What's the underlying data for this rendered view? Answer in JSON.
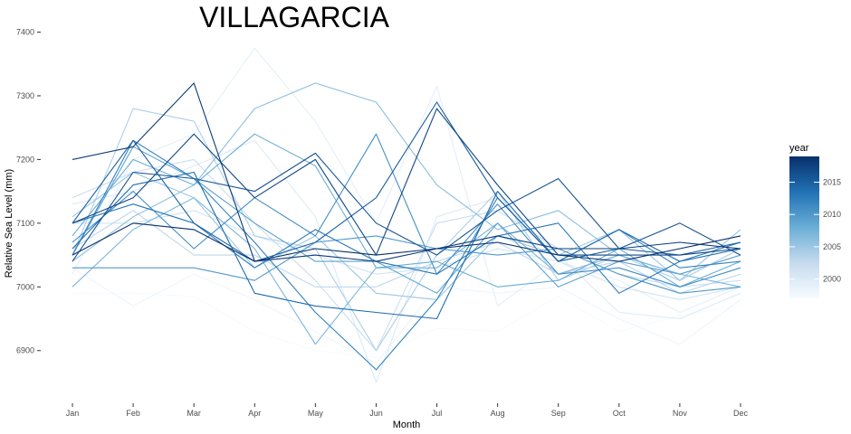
{
  "chart_data": {
    "type": "line",
    "title": "VILLAGARCIA",
    "xlabel": "Month",
    "ylabel": "Relative Sea Level (mm)",
    "categories": [
      "Jan",
      "Feb",
      "Mar",
      "Apr",
      "May",
      "Jun",
      "Jul",
      "Aug",
      "Sep",
      "Oct",
      "Nov",
      "Dec"
    ],
    "yticks": [
      6900,
      7000,
      7100,
      7200,
      7300,
      7400
    ],
    "ylim": [
      6840,
      7405
    ],
    "grid": false,
    "legend": {
      "title": "year",
      "position": "right",
      "type": "colorbar",
      "range": [
        1997,
        2019
      ],
      "ticks": [
        2000,
        2005,
        2010,
        2015
      ],
      "colors": [
        "#f7fbff",
        "#c6dbef",
        "#6baed6",
        "#2171b5",
        "#08306b"
      ]
    },
    "series": [
      {
        "year": 1997,
        "values": [
          6990,
          6990,
          6985,
          6930,
          6900,
          6890,
          6935,
          6930,
          6985,
          6930,
          6955,
          6970
        ]
      },
      {
        "year": 1998,
        "values": [
          7030,
          6970,
          7020,
          6980,
          6930,
          6880,
          7000,
          6990,
          7000,
          6950,
          6910,
          6980
        ]
      },
      {
        "year": 1999,
        "values": [
          7020,
          7200,
          7240,
          7375,
          7260,
          7100,
          7315,
          6970,
          7040,
          7010,
          6960,
          7000
        ]
      },
      {
        "year": 2000,
        "values": [
          7130,
          7150,
          7190,
          7230,
          7110,
          6850,
          7110,
          7140,
          7050,
          6960,
          6950,
          6990
        ]
      },
      {
        "year": 2001,
        "values": [
          7100,
          7100,
          7120,
          7080,
          7050,
          7020,
          7030,
          7060,
          7040,
          7000,
          6980,
          7000
        ]
      },
      {
        "year": 2002,
        "values": [
          7140,
          7180,
          7200,
          7100,
          7010,
          6900,
          7100,
          7120,
          7060,
          7020,
          7000,
          7010
        ]
      },
      {
        "year": 2003,
        "values": [
          7060,
          7120,
          7050,
          7050,
          7000,
          7000,
          7040,
          7070,
          7020,
          7040,
          6990,
          7020
        ]
      },
      {
        "year": 2004,
        "values": [
          7050,
          7280,
          7260,
          7080,
          7060,
          6900,
          7050,
          7150,
          7010,
          7050,
          7010,
          7060
        ]
      },
      {
        "year": 2005,
        "values": [
          7110,
          7180,
          7140,
          7030,
          7080,
          6990,
          6980,
          7080,
          7050,
          7090,
          7010,
          7090
        ]
      },
      {
        "year": 2006,
        "values": [
          7040,
          7110,
          7160,
          7280,
          7320,
          7290,
          7160,
          7090,
          7120,
          7050,
          7020,
          7050
        ]
      },
      {
        "year": 2007,
        "values": [
          7000,
          7090,
          7140,
          7060,
          6910,
          7030,
          7030,
          7100,
          7020,
          7050,
          7020,
          7000
        ]
      },
      {
        "year": 2008,
        "values": [
          7080,
          7200,
          7160,
          7240,
          7190,
          7030,
          7040,
          7000,
          7010,
          7060,
          7000,
          7040
        ]
      },
      {
        "year": 2009,
        "values": [
          7050,
          7220,
          7170,
          7100,
          7040,
          7040,
          6990,
          7100,
          7000,
          7040,
          7020,
          7050
        ]
      },
      {
        "year": 2010,
        "values": [
          7030,
          7030,
          7030,
          7010,
          7070,
          7080,
          7060,
          7050,
          7060,
          7020,
          6990,
          7000
        ]
      },
      {
        "year": 2011,
        "values": [
          7070,
          7150,
          7060,
          7140,
          7080,
          7240,
          7020,
          7130,
          7020,
          7030,
          7000,
          7030
        ]
      },
      {
        "year": 2012,
        "values": [
          7050,
          7230,
          7170,
          7070,
          6960,
          6870,
          6980,
          7140,
          7040,
          7090,
          7030,
          7040
        ]
      },
      {
        "year": 2013,
        "values": [
          7100,
          7130,
          7100,
          7030,
          7090,
          7040,
          7020,
          7080,
          7100,
          6990,
          7040,
          7070
        ]
      },
      {
        "year": 2014,
        "values": [
          7060,
          7160,
          7180,
          6990,
          6970,
          6960,
          6950,
          7150,
          7040,
          7090,
          7040,
          7060
        ]
      },
      {
        "year": 2015,
        "values": [
          7100,
          7230,
          7100,
          7040,
          7070,
          7140,
          7290,
          7140,
          7040,
          7060,
          7050,
          7070
        ]
      },
      {
        "year": 2016,
        "values": [
          7040,
          7180,
          7170,
          7150,
          7210,
          7100,
          7050,
          7120,
          7170,
          7060,
          7100,
          7050
        ]
      },
      {
        "year": 2017,
        "values": [
          7100,
          7140,
          7240,
          7140,
          7200,
          7050,
          7280,
          7160,
          7050,
          7050,
          7050,
          7060
        ]
      },
      {
        "year": 2018,
        "values": [
          7200,
          7220,
          7320,
          7040,
          7050,
          7040,
          7060,
          7080,
          7060,
          7060,
          7070,
          7060
        ]
      },
      {
        "year": 2019,
        "values": [
          7050,
          7100,
          7090,
          7040,
          7060,
          7050,
          7060,
          7070,
          7050,
          7040,
          7060,
          7080
        ]
      }
    ]
  }
}
